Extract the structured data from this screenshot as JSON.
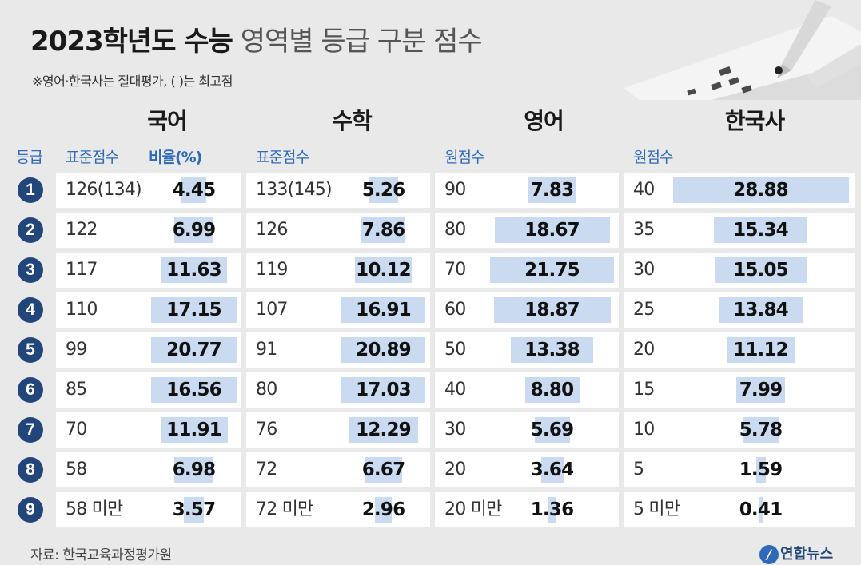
{
  "title": {
    "bold": "2023학년도 수능",
    "light": "영역별 등급 구분 점수"
  },
  "note": "※영어·한국사는 절대평가, ( )는 최고점",
  "source": "자료: 한국교육과정평가원",
  "logo_text": "연합뉴스",
  "colors": {
    "accent": "#2f6ab8",
    "badge": "#22457a",
    "bar": "#c9daf1",
    "background": "#e9e9ea"
  },
  "icons": {
    "logo": "yonhap-logo-icon",
    "illustration": "pen-and-answer-sheet-icon"
  },
  "chart_data": {
    "type": "table",
    "grade_header": "등급",
    "grades": [
      "1",
      "2",
      "3",
      "4",
      "5",
      "6",
      "7",
      "8",
      "9"
    ],
    "subjects": [
      {
        "name": "국어",
        "score_header": "표준점수",
        "ratio_header": "비율(%)",
        "scores": [
          "126(134)",
          "122",
          "117",
          "110",
          "99",
          "85",
          "70",
          "58",
          "58 미만"
        ],
        "values": [
          4.45,
          6.99,
          11.63,
          17.15,
          20.77,
          16.56,
          11.91,
          6.98,
          3.57
        ],
        "labels": [
          "4.45",
          "6.99",
          "11.63",
          "17.15",
          "20.77",
          "16.56",
          "11.91",
          "6.98",
          "3.57"
        ]
      },
      {
        "name": "수학",
        "score_header": "표준점수",
        "scores": [
          "133(145)",
          "126",
          "119",
          "107",
          "91",
          "80",
          "76",
          "72",
          "72 미만"
        ],
        "values": [
          5.26,
          7.86,
          10.12,
          16.91,
          20.89,
          17.03,
          12.29,
          6.67,
          2.96
        ],
        "labels": [
          "5.26",
          "7.86",
          "10.12",
          "16.91",
          "20.89",
          "17.03",
          "12.29",
          "6.67",
          "2.96"
        ]
      },
      {
        "name": "영어",
        "score_header": "원점수",
        "scores": [
          "90",
          "80",
          "70",
          "60",
          "50",
          "40",
          "30",
          "20",
          "20 미만"
        ],
        "values": [
          7.83,
          18.67,
          21.75,
          18.87,
          13.38,
          8.8,
          5.69,
          3.64,
          1.36
        ],
        "labels": [
          "7.83",
          "18.67",
          "21.75",
          "18.87",
          "13.38",
          "8.80",
          "5.69",
          "3.64",
          "1.36"
        ]
      },
      {
        "name": "한국사",
        "score_header": "원점수",
        "scores": [
          "40",
          "35",
          "30",
          "25",
          "20",
          "15",
          "10",
          "5",
          "5 미만"
        ],
        "values": [
          28.88,
          15.34,
          15.05,
          13.84,
          11.12,
          7.99,
          5.78,
          1.59,
          0.41
        ],
        "labels": [
          "28.88",
          "15.34",
          "15.05",
          "13.84",
          "11.12",
          "7.99",
          "5.78",
          "1.59",
          "0.41"
        ]
      }
    ]
  }
}
